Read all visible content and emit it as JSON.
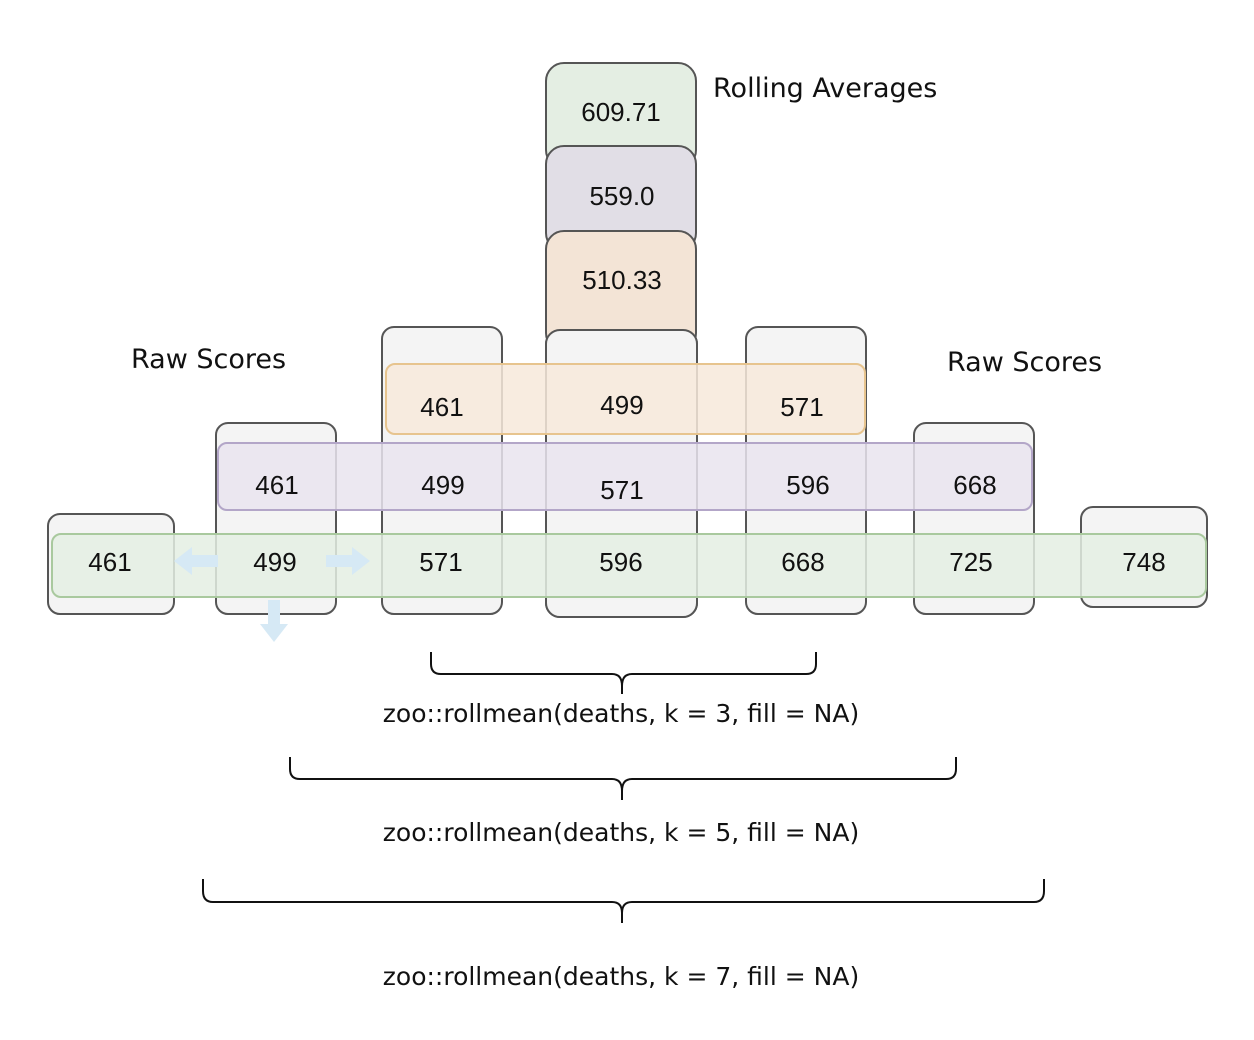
{
  "labels": {
    "rolling_averages": "Rolling Averages",
    "raw_scores_left": "Raw Scores",
    "raw_scores_right": "Raw Scores"
  },
  "rolling_averages": {
    "k7": "609.71",
    "k5": "559.0",
    "k3": "510.33"
  },
  "raw_row_k7": [
    "461",
    "499",
    "571",
    "596",
    "668",
    "725",
    "748"
  ],
  "raw_row_k5": [
    "461",
    "499",
    "571",
    "596",
    "668"
  ],
  "raw_row_k3": [
    "461",
    "499",
    "571"
  ],
  "formulas": {
    "k3": "zoo::rollmean(deaths, k = 3, fill = NA)",
    "k5": "zoo::rollmean(deaths, k = 5, fill = NA)",
    "k7": "zoo::rollmean(deaths, k = 7, fill = NA)"
  },
  "colors": {
    "green_fill": "#e4eee3",
    "green_stroke": "#a9c99e",
    "purple_fill": "#e9e4ef",
    "purple_stroke": "#b3a6c8",
    "orange_fill": "#f7e9da",
    "orange_stroke": "#e7c48e",
    "avg_green": "#e4eee3",
    "avg_purple": "#e1dee6",
    "avg_orange": "#f3e4d6",
    "column_stroke": "#555555",
    "arrow": "#d6e9f5"
  }
}
